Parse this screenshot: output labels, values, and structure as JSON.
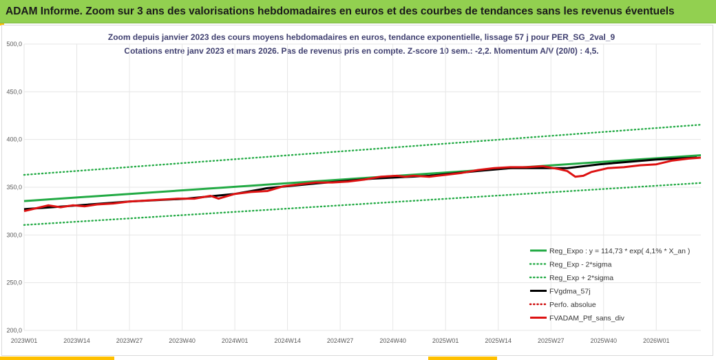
{
  "header": {
    "title": "ADAM Informe. Zoom sur 3 ans des valorisations hebdomadaires en euros et des courbes de tendances sans les revenus éventuels"
  },
  "chart_data": {
    "type": "line",
    "title": "Zoom depuis janvier 2023 des cours moyens hebdomadaires  en euros, tendance exponentielle, lissage 57 j pour PER_SG_2val_9",
    "subtitle": "Cotations  entre janv 2023 et mars 2026. Pas de revenus pris en compte. Z-score 10 sem.: -2,2. Momentum A/V (20/0) : 4,5.",
    "ylim": [
      200,
      500
    ],
    "y_ticks": [
      "200,0",
      "250,0",
      "300,0",
      "350,0",
      "400,0",
      "450,0",
      "500,0"
    ],
    "x_ticks": [
      "2023W01",
      "2023W14",
      "2023W27",
      "2023W40",
      "2024W01",
      "2024W14",
      "2024W27",
      "2024W40",
      "2025W01",
      "2025W14",
      "2025W27",
      "2025W40",
      "2026W01"
    ],
    "x_count": 168,
    "legend_position": "bottom-right",
    "series": [
      {
        "name": "Reg_Expo : y = 114,73 * exp( 4,1% *  X_an )",
        "color": "#22aa44",
        "style": "solid",
        "points": [
          [
            0,
            335.5
          ],
          [
            167,
            383.5
          ]
        ]
      },
      {
        "name": "Reg_Exp - 2*sigma",
        "color": "#22aa44",
        "style": "dotted",
        "points": [
          [
            0,
            310.5
          ],
          [
            167,
            354.5
          ]
        ]
      },
      {
        "name": "Reg_Exp + 2*sigma",
        "color": "#22aa44",
        "style": "dotted",
        "points": [
          [
            0,
            363
          ],
          [
            167,
            415.5
          ]
        ]
      },
      {
        "name": "FVgdma_57j",
        "color": "#000000",
        "style": "solid",
        "points": [
          [
            0,
            327
          ],
          [
            10,
            330
          ],
          [
            26,
            335
          ],
          [
            40,
            338
          ],
          [
            52,
            343
          ],
          [
            60,
            349
          ],
          [
            72,
            354
          ],
          [
            86,
            359
          ],
          [
            100,
            362
          ],
          [
            112,
            367
          ],
          [
            120,
            370
          ],
          [
            134,
            370
          ],
          [
            142,
            374
          ],
          [
            156,
            379
          ],
          [
            166,
            381
          ]
        ]
      },
      {
        "name": "Perfo. absolue",
        "color": "#cc0000",
        "style": "dotted",
        "points": []
      },
      {
        "name": "FVADAM_Ptf_sans_div",
        "color": "#dd1111",
        "style": "solid",
        "points": [
          [
            0,
            325
          ],
          [
            3,
            328
          ],
          [
            6,
            331
          ],
          [
            9,
            329
          ],
          [
            12,
            331
          ],
          [
            15,
            330
          ],
          [
            18,
            332
          ],
          [
            22,
            333
          ],
          [
            26,
            335
          ],
          [
            30,
            336
          ],
          [
            34,
            337
          ],
          [
            38,
            338
          ],
          [
            42,
            338
          ],
          [
            46,
            341
          ],
          [
            48,
            338
          ],
          [
            52,
            343
          ],
          [
            56,
            345
          ],
          [
            60,
            346
          ],
          [
            64,
            351
          ],
          [
            68,
            353
          ],
          [
            72,
            355
          ],
          [
            76,
            355
          ],
          [
            80,
            356
          ],
          [
            84,
            358
          ],
          [
            88,
            361
          ],
          [
            92,
            362
          ],
          [
            94,
            361
          ],
          [
            96,
            362
          ],
          [
            100,
            361
          ],
          [
            104,
            363
          ],
          [
            108,
            365
          ],
          [
            112,
            368
          ],
          [
            116,
            370
          ],
          [
            120,
            371
          ],
          [
            124,
            371
          ],
          [
            128,
            372
          ],
          [
            132,
            369
          ],
          [
            134,
            367
          ],
          [
            136,
            361
          ],
          [
            138,
            362
          ],
          [
            140,
            366
          ],
          [
            144,
            370
          ],
          [
            148,
            371
          ],
          [
            152,
            373
          ],
          [
            156,
            374
          ],
          [
            160,
            378
          ],
          [
            164,
            380
          ],
          [
            167,
            381
          ]
        ]
      }
    ]
  }
}
